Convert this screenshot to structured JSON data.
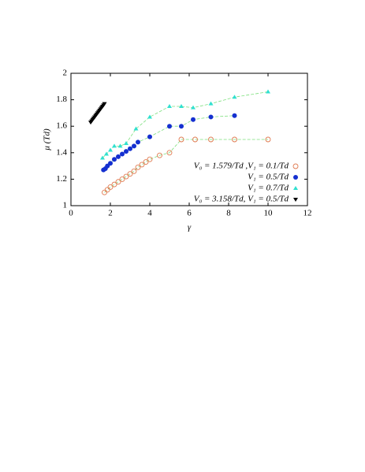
{
  "chart_data": {
    "type": "scatter",
    "xlabel": "γ",
    "ylabel": "μ (Td)",
    "xlim": [
      0,
      12
    ],
    "ylim": [
      1,
      2
    ],
    "xticks": [
      0,
      2,
      4,
      6,
      8,
      10,
      12
    ],
    "yticks": [
      1,
      1.2,
      1.4,
      1.6,
      1.8,
      2
    ],
    "legend": "lower right",
    "series": [
      {
        "name": "V₀ = 1.579/Td ,V₁ = 0.1/Td",
        "color": "#e07a50",
        "marker": "open-circle",
        "line_color": "#7fe07f",
        "x": [
          1.7,
          1.85,
          2.0,
          2.2,
          2.4,
          2.6,
          2.8,
          3.0,
          3.2,
          3.4,
          3.6,
          3.8,
          4.0,
          4.5,
          5.0,
          5.6,
          6.3,
          7.1,
          8.3,
          10.0
        ],
        "values": [
          1.1,
          1.12,
          1.14,
          1.16,
          1.18,
          1.2,
          1.22,
          1.24,
          1.26,
          1.29,
          1.31,
          1.33,
          1.35,
          1.38,
          1.4,
          1.5,
          1.5,
          1.5,
          1.5,
          1.5
        ]
      },
      {
        "name": "V₁ = 0.5/Td",
        "color": "#1530d0",
        "marker": "circle",
        "line_color": "#7fe07f",
        "x": [
          1.65,
          1.75,
          1.85,
          2.0,
          2.2,
          2.4,
          2.6,
          2.8,
          3.0,
          3.2,
          3.4,
          4.0,
          5.0,
          5.6,
          6.2,
          7.1,
          8.3
        ],
        "values": [
          1.27,
          1.28,
          1.3,
          1.32,
          1.35,
          1.37,
          1.39,
          1.41,
          1.43,
          1.45,
          1.48,
          1.52,
          1.6,
          1.6,
          1.65,
          1.67,
          1.68
        ]
      },
      {
        "name": "V₁ = 0.7/Td",
        "color": "#30e0d0",
        "marker": "triangle",
        "line_color": "#7fe07f",
        "x": [
          1.6,
          1.8,
          2.0,
          2.2,
          2.5,
          2.8,
          3.3,
          4.0,
          5.0,
          5.6,
          6.2,
          7.1,
          8.3,
          10.0
        ],
        "values": [
          1.36,
          1.39,
          1.42,
          1.45,
          1.45,
          1.47,
          1.58,
          1.67,
          1.75,
          1.75,
          1.74,
          1.77,
          1.82,
          1.86
        ]
      },
      {
        "name": "V₀ = 3.158/Td, V₁ = 0.5/Td",
        "color": "#000000",
        "marker": "triangle-down",
        "line_color": null,
        "x": [
          1.0,
          1.05,
          1.1,
          1.15,
          1.2,
          1.25,
          1.3,
          1.35,
          1.4,
          1.45,
          1.5,
          1.55,
          1.6,
          1.65,
          1.7
        ],
        "values": [
          1.63,
          1.64,
          1.65,
          1.66,
          1.67,
          1.68,
          1.69,
          1.7,
          1.71,
          1.72,
          1.73,
          1.74,
          1.75,
          1.76,
          1.77
        ]
      }
    ]
  }
}
